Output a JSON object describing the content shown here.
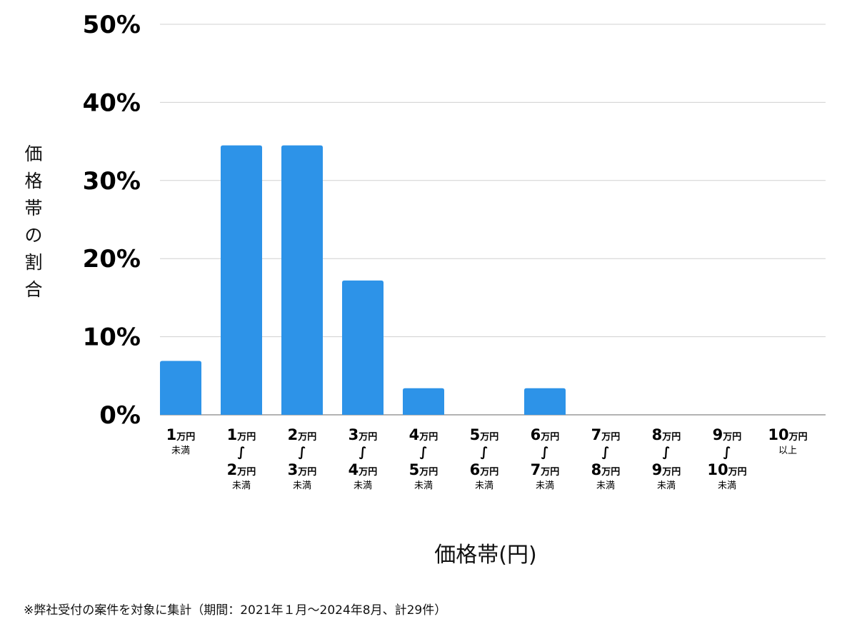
{
  "chart_data": {
    "type": "bar",
    "xlabel": "価格帯(円)",
    "ylabel": "価格帯の割合",
    "ylim": [
      0,
      50
    ],
    "yticks": [
      "0%",
      "10%",
      "20%",
      "30%",
      "40%",
      "50%"
    ],
    "grid": true,
    "color": "#2d93e8",
    "categories": [
      {
        "lines": [
          {
            "num": "1",
            "unit": "万円"
          }
        ],
        "suffix": "未満"
      },
      {
        "lines": [
          {
            "num": "1",
            "unit": "万円"
          },
          {
            "wave": "∫"
          },
          {
            "num": "2",
            "unit": "万円"
          }
        ],
        "suffix": "未満"
      },
      {
        "lines": [
          {
            "num": "2",
            "unit": "万円"
          },
          {
            "wave": "∫"
          },
          {
            "num": "3",
            "unit": "万円"
          }
        ],
        "suffix": "未満"
      },
      {
        "lines": [
          {
            "num": "3",
            "unit": "万円"
          },
          {
            "wave": "∫"
          },
          {
            "num": "4",
            "unit": "万円"
          }
        ],
        "suffix": "未満"
      },
      {
        "lines": [
          {
            "num": "4",
            "unit": "万円"
          },
          {
            "wave": "∫"
          },
          {
            "num": "5",
            "unit": "万円"
          }
        ],
        "suffix": "未満"
      },
      {
        "lines": [
          {
            "num": "5",
            "unit": "万円"
          },
          {
            "wave": "∫"
          },
          {
            "num": "6",
            "unit": "万円"
          }
        ],
        "suffix": "未満"
      },
      {
        "lines": [
          {
            "num": "6",
            "unit": "万円"
          },
          {
            "wave": "∫"
          },
          {
            "num": "7",
            "unit": "万円"
          }
        ],
        "suffix": "未満"
      },
      {
        "lines": [
          {
            "num": "7",
            "unit": "万円"
          },
          {
            "wave": "∫"
          },
          {
            "num": "8",
            "unit": "万円"
          }
        ],
        "suffix": "未満"
      },
      {
        "lines": [
          {
            "num": "8",
            "unit": "万円"
          },
          {
            "wave": "∫"
          },
          {
            "num": "9",
            "unit": "万円"
          }
        ],
        "suffix": "未満"
      },
      {
        "lines": [
          {
            "num": "9",
            "unit": "万円"
          },
          {
            "wave": "∫"
          },
          {
            "num": "10",
            "unit": "万円"
          }
        ],
        "suffix": "未満"
      },
      {
        "lines": [
          {
            "num": "10",
            "unit": "万円"
          }
        ],
        "suffix": "以上"
      }
    ],
    "values": [
      6.9,
      34.5,
      34.5,
      17.2,
      3.4,
      0,
      3.4,
      0,
      0,
      0,
      0
    ]
  },
  "footnote": "※弊社受付の案件を対象に集計（期間：2021年１月～2024年8月、計29件）"
}
